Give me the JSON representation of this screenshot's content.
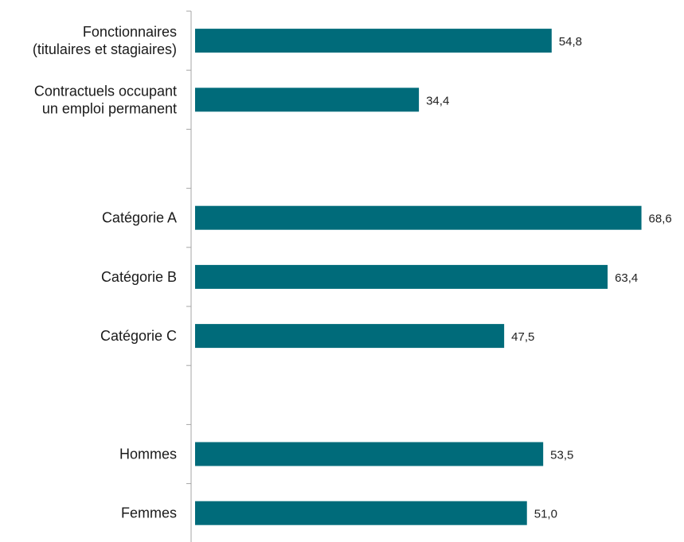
{
  "chart_data": {
    "type": "bar",
    "orientation": "horizontal",
    "bar_color": "#006B7A",
    "axis_color": "#a6a6a6",
    "rows": [
      {
        "label_lines": [
          "Fonctionnaires",
          "(titulaires et stagiaires)"
        ],
        "value": 54.8,
        "value_label": "54,8"
      },
      {
        "label_lines": [
          "Contractuels occupant",
          "un emploi permanent"
        ],
        "value": 34.4,
        "value_label": "34,4"
      },
      {
        "label_lines": [
          ""
        ],
        "value": null,
        "value_label": ""
      },
      {
        "label_lines": [
          "Catégorie A"
        ],
        "value": 68.6,
        "value_label": "68,6"
      },
      {
        "label_lines": [
          "Catégorie B"
        ],
        "value": 63.4,
        "value_label": "63,4"
      },
      {
        "label_lines": [
          "Catégorie C"
        ],
        "value": 47.5,
        "value_label": "47,5"
      },
      {
        "label_lines": [
          ""
        ],
        "value": null,
        "value_label": ""
      },
      {
        "label_lines": [
          "Hommes"
        ],
        "value": 53.5,
        "value_label": "53,5"
      },
      {
        "label_lines": [
          "Femmes"
        ],
        "value": 51.0,
        "value_label": "51,0"
      }
    ],
    "xlim": [
      0,
      70
    ],
    "grid": false,
    "legend": "none",
    "title": "",
    "xlabel": "",
    "ylabel": ""
  }
}
